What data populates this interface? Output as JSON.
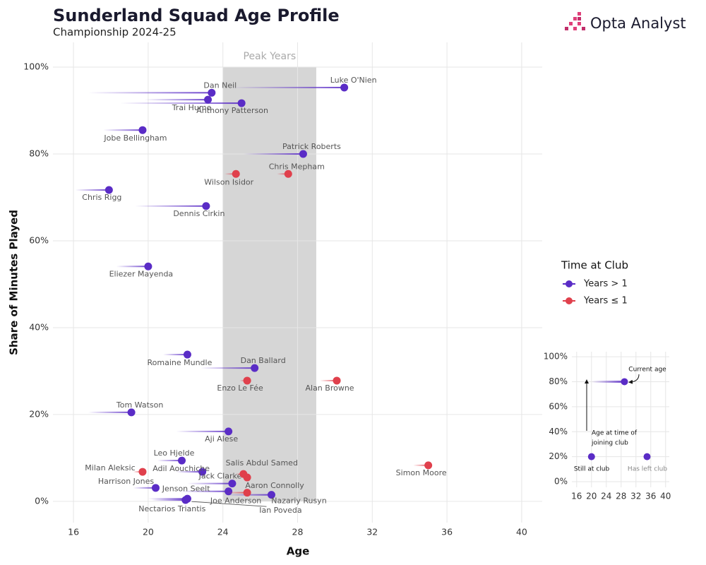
{
  "branding": "Opta Analyst",
  "chart_data": [
    {
      "type": "scatter",
      "title": "Sunderland Squad Age Profile",
      "subtitle": "Championship 2024-25",
      "x_label": "Age",
      "y_label": "Share of Minutes Played",
      "xlim": [
        14.9,
        41.1
      ],
      "xticks": [
        16,
        20,
        24,
        28,
        32,
        36,
        40
      ],
      "ylim": [
        -4.9,
        105.7
      ],
      "yticks": [
        {
          "value": 0,
          "label": "0%"
        },
        {
          "value": 20,
          "label": "20%"
        },
        {
          "value": 40,
          "label": "40%"
        },
        {
          "value": 60,
          "label": "60%"
        },
        {
          "value": 80,
          "label": "80%"
        },
        {
          "value": 100,
          "label": "100%"
        }
      ],
      "grid": true,
      "band": {
        "x": [
          24,
          29
        ],
        "label": "Peak Years"
      },
      "legend_title": "Time at Club",
      "series": [
        {
          "name": "Years > 1",
          "color": "#5a2cc6",
          "labels": [
            "Luke O'Nien",
            "Dan Neil",
            "Trai Hume",
            "Anthony Patterson",
            "Jobe Bellingham",
            "Patrick Roberts",
            "Chris Rigg",
            "Dennis Cirkin",
            "Eliezer Mayenda",
            "Romaine Mundle",
            "Dan Ballard",
            "Tom Watson",
            "Aji Alese",
            "Leo Hjelde",
            "Adil Aouchiche",
            "Jack Clarke",
            "Harrison Jones",
            "Jenson Seelt",
            "Nazariy Rusyn",
            "Nectarios Triantis",
            "Ian Poveda"
          ],
          "x": [
            30.5,
            23.4,
            23.2,
            25.0,
            19.7,
            28.3,
            17.9,
            23.1,
            20.0,
            22.1,
            25.7,
            19.1,
            24.3,
            21.8,
            22.9,
            24.5,
            20.4,
            24.3,
            26.6,
            22.0,
            22.1
          ],
          "values": [
            95.3,
            94.1,
            92.5,
            91.7,
            85.5,
            80.0,
            71.7,
            68.0,
            54.1,
            33.8,
            30.7,
            20.5,
            16.1,
            9.4,
            6.8,
            4.1,
            3.1,
            2.3,
            1.5,
            0.3,
            0.6
          ],
          "join_age": [
            24.5,
            16.8,
            19.8,
            18.5,
            17.6,
            25.1,
            16.1,
            19.3,
            18.3,
            20.8,
            22.8,
            16.8,
            21.5,
            20.5,
            21.5,
            22.1,
            19.2,
            21.7,
            24.1,
            20.2,
            20.0
          ]
        },
        {
          "name": "Years ≤ 1",
          "color": "#e0404c",
          "labels": [
            "Chris Mepham",
            "Wilson Isidor",
            "Enzo Le Fée",
            "Alan Browne",
            "Simon Moore",
            "Salis Abdul Samed",
            "Milan Aleksic",
            "Aaron Connolly",
            "Joe Anderson"
          ],
          "x": [
            27.5,
            24.7,
            25.3,
            30.1,
            35.0,
            25.1,
            19.7,
            25.3,
            25.3
          ],
          "values": [
            75.4,
            75.4,
            27.8,
            27.8,
            8.3,
            6.3,
            6.8,
            5.5,
            2.0
          ],
          "join_age": [
            26.9,
            24.1,
            24.9,
            29.2,
            34.2,
            24.7,
            19.2,
            25.1,
            24.2
          ]
        }
      ]
    },
    {
      "type": "scatter",
      "xlim": [
        14.7,
        41
      ],
      "xticks": [
        16,
        20,
        24,
        28,
        32,
        36,
        40
      ],
      "ylim": [
        -4.5,
        104
      ],
      "yticks": [
        {
          "value": 0,
          "label": "0%"
        },
        {
          "value": 20,
          "label": "20%"
        },
        {
          "value": 40,
          "label": "40%"
        },
        {
          "value": 60,
          "label": "60%"
        },
        {
          "value": 80,
          "label": "80%"
        },
        {
          "value": 100,
          "label": "100%"
        }
      ],
      "grid": true,
      "series": [
        {
          "color": "#5a2cc6",
          "x": [
            28.9,
            20,
            35
          ],
          "values": [
            80,
            20,
            20
          ],
          "join_age": [
            20,
            null,
            null
          ]
        }
      ],
      "annotations": [
        "Current age",
        "Age at time of",
        "joining club",
        "Still at club",
        "Has left club"
      ]
    }
  ]
}
